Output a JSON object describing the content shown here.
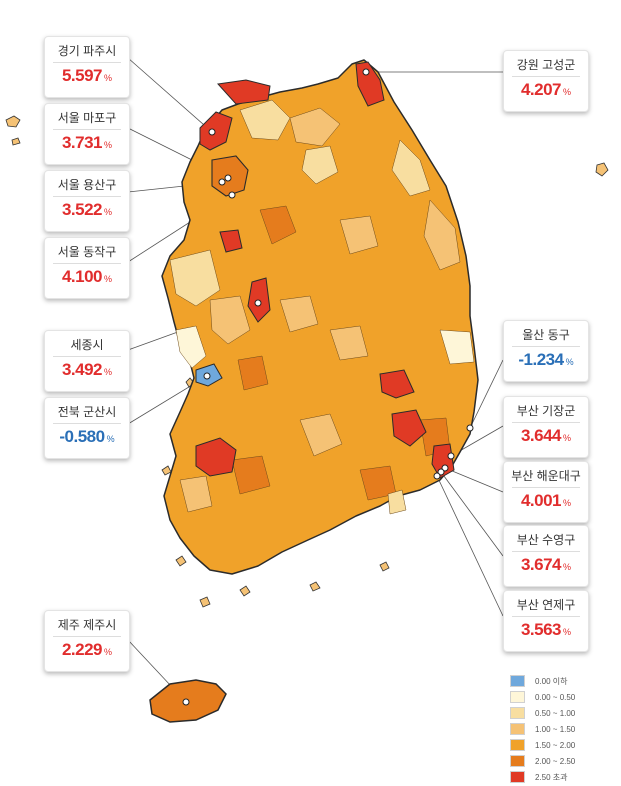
{
  "legend": [
    {
      "label": "0.00 이하",
      "color": "#6fa8dc"
    },
    {
      "label": "0.00 ~ 0.50",
      "color": "#fef6d8"
    },
    {
      "label": "0.50 ~ 1.00",
      "color": "#f8dea0"
    },
    {
      "label": "1.00 ~ 1.50",
      "color": "#f5c275"
    },
    {
      "label": "1.50 ~ 2.00",
      "color": "#f0a22a"
    },
    {
      "label": "2.00 ~ 2.50",
      "color": "#e57c1d"
    },
    {
      "label": "2.50 초과",
      "color": "#e03a25"
    }
  ],
  "callouts": {
    "paju": {
      "name": "경기 파주시",
      "value": "5.597",
      "unit": "%"
    },
    "mapo": {
      "name": "서울 마포구",
      "value": "3.731",
      "unit": "%"
    },
    "yongsan": {
      "name": "서울 용산구",
      "value": "3.522",
      "unit": "%"
    },
    "dongjak": {
      "name": "서울 동작구",
      "value": "4.100",
      "unit": "%"
    },
    "sejong": {
      "name": "세종시",
      "value": "3.492",
      "unit": "%"
    },
    "gunsan": {
      "name": "전북 군산시",
      "value": "-0.580",
      "unit": "%"
    },
    "jeju": {
      "name": "제주 제주시",
      "value": "2.229",
      "unit": "%"
    },
    "goseong": {
      "name": "강원 고성군",
      "value": "4.207",
      "unit": "%"
    },
    "ulsan_dong": {
      "name": "울산 동구",
      "value": "-1.234",
      "unit": "%"
    },
    "gijang": {
      "name": "부산 기장군",
      "value": "3.644",
      "unit": "%"
    },
    "haeundae": {
      "name": "부산 해운대구",
      "value": "4.001",
      "unit": "%"
    },
    "suyeong": {
      "name": "부산 수영구",
      "value": "3.674",
      "unit": "%"
    },
    "yeonje": {
      "name": "부산 연제구",
      "value": "3.563",
      "unit": "%"
    }
  }
}
